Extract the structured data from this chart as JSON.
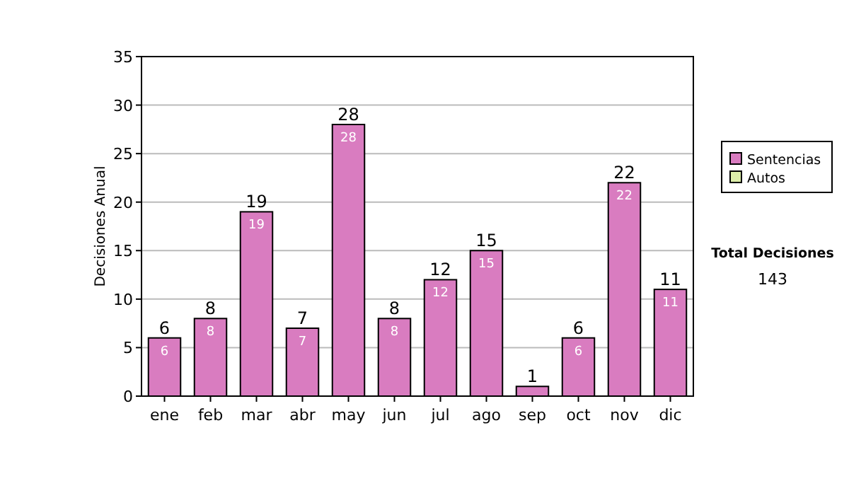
{
  "chart_data": {
    "type": "bar",
    "ylabel": "Decisiones Anual",
    "categories": [
      "ene",
      "feb",
      "mar",
      "abr",
      "may",
      "jun",
      "jul",
      "ago",
      "sep",
      "oct",
      "nov",
      "dic"
    ],
    "series": [
      {
        "name": "Sentencias",
        "color": "#d97cc0",
        "values": [
          6,
          8,
          19,
          7,
          28,
          8,
          12,
          15,
          1,
          6,
          22,
          11
        ],
        "value_labels": [
          "6",
          "8",
          "19",
          "7",
          "28",
          "8",
          "12",
          "15",
          null,
          "6",
          "22",
          "11"
        ]
      },
      {
        "name": "Autos",
        "color": "#ddeeaa",
        "values": [
          0,
          0,
          0,
          0,
          0,
          0,
          0,
          0,
          0,
          0,
          0,
          0
        ]
      }
    ],
    "stacked": true,
    "totals": [
      "6",
      "8",
      "19",
      "7",
      "28",
      "8",
      "12",
      "15",
      "1",
      "6",
      "22",
      "11"
    ],
    "ylim": [
      0,
      35
    ],
    "yticks": [
      0,
      5,
      10,
      15,
      20,
      25,
      30,
      35
    ],
    "grid": "y",
    "legend": "right",
    "annotations": [
      "Total Decisiones",
      "143"
    ]
  }
}
